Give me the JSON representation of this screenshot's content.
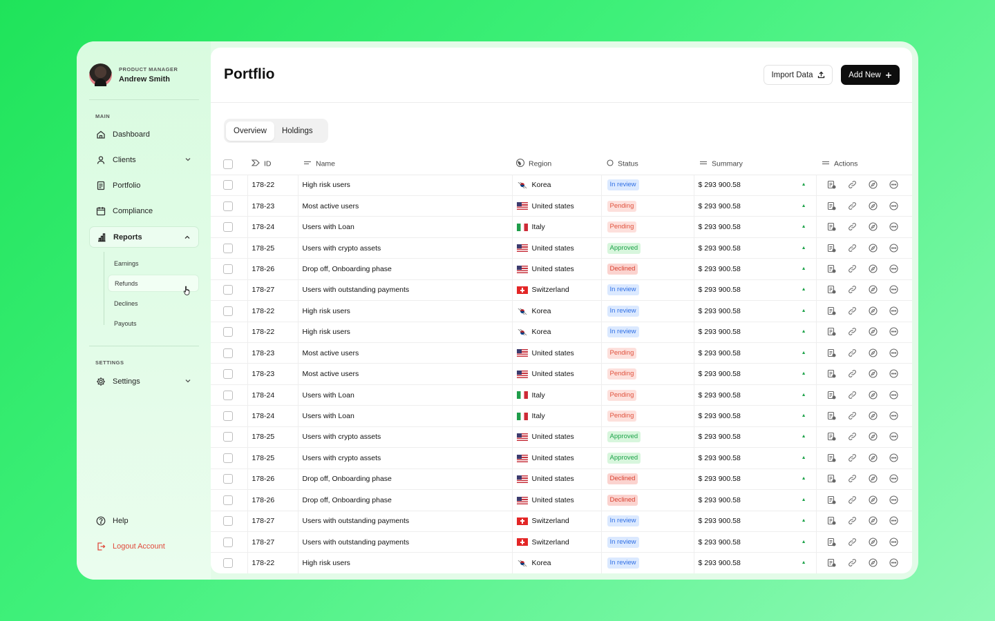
{
  "profile": {
    "role": "PRODUCT MANAGER",
    "name": "Andrew Smith"
  },
  "sidebar": {
    "main_label": "MAIN",
    "items": [
      {
        "label": "Dashboard",
        "icon": "home-icon"
      },
      {
        "label": "Clients",
        "icon": "user-icon"
      },
      {
        "label": "Portfolio",
        "icon": "document-icon"
      },
      {
        "label": "Compliance",
        "icon": "calendar-icon"
      },
      {
        "label": "Reports",
        "icon": "bar-chart-icon"
      }
    ],
    "reports_sub": [
      "Earnings",
      "Refunds",
      "Declines",
      "Payouts"
    ],
    "settings_label": "SETTINGS",
    "settings": "Settings",
    "help": "Help",
    "logout": "Logout Account"
  },
  "header": {
    "title": "Portflio",
    "import_label": "Import Data",
    "add_label": "Add New"
  },
  "tabs": [
    "Overview",
    "Holdings"
  ],
  "table": {
    "columns": [
      "ID",
      "Name",
      "Region",
      "Status",
      "Summary",
      "Actions"
    ],
    "rows": [
      {
        "id": "178-22",
        "name": "High risk users",
        "region": "Korea",
        "flag": "kr",
        "status": "In review",
        "summary": "$ 293 900.58"
      },
      {
        "id": "178-23",
        "name": "Most active users",
        "region": "United states",
        "flag": "us",
        "status": "Pending",
        "summary": "$ 293 900.58"
      },
      {
        "id": "178-24",
        "name": "Users with Loan",
        "region": "Italy",
        "flag": "it",
        "status": "Pending",
        "summary": "$ 293 900.58"
      },
      {
        "id": "178-25",
        "name": "Users with crypto assets",
        "region": "United states",
        "flag": "us",
        "status": "Approved",
        "summary": "$ 293 900.58"
      },
      {
        "id": "178-26",
        "name": "Drop off, Onboarding phase",
        "region": "United states",
        "flag": "us",
        "status": "Declined",
        "summary": "$ 293 900.58"
      },
      {
        "id": "178-27",
        "name": "Users with outstanding payments",
        "region": "Switzerland",
        "flag": "ch",
        "status": "In review",
        "summary": "$ 293 900.58"
      },
      {
        "id": "178-22",
        "name": "High risk users",
        "region": "Korea",
        "flag": "kr",
        "status": "In review",
        "summary": "$ 293 900.58"
      },
      {
        "id": "178-22",
        "name": "High risk users",
        "region": "Korea",
        "flag": "kr",
        "status": "In review",
        "summary": "$ 293 900.58"
      },
      {
        "id": "178-23",
        "name": "Most active users",
        "region": "United states",
        "flag": "us",
        "status": "Pending",
        "summary": "$ 293 900.58"
      },
      {
        "id": "178-23",
        "name": "Most active users",
        "region": "United states",
        "flag": "us",
        "status": "Pending",
        "summary": "$ 293 900.58"
      },
      {
        "id": "178-24",
        "name": "Users with Loan",
        "region": "Italy",
        "flag": "it",
        "status": "Pending",
        "summary": "$ 293 900.58"
      },
      {
        "id": "178-24",
        "name": "Users with Loan",
        "region": "Italy",
        "flag": "it",
        "status": "Pending",
        "summary": "$ 293 900.58"
      },
      {
        "id": "178-25",
        "name": "Users with crypto assets",
        "region": "United states",
        "flag": "us",
        "status": "Approved",
        "summary": "$ 293 900.58"
      },
      {
        "id": "178-25",
        "name": "Users with crypto assets",
        "region": "United states",
        "flag": "us",
        "status": "Approved",
        "summary": "$ 293 900.58"
      },
      {
        "id": "178-26",
        "name": "Drop off, Onboarding phase",
        "region": "United states",
        "flag": "us",
        "status": "Declined",
        "summary": "$ 293 900.58"
      },
      {
        "id": "178-26",
        "name": "Drop off, Onboarding phase",
        "region": "United states",
        "flag": "us",
        "status": "Declined",
        "summary": "$ 293 900.58"
      },
      {
        "id": "178-27",
        "name": "Users with outstanding payments",
        "region": "Switzerland",
        "flag": "ch",
        "status": "In review",
        "summary": "$ 293 900.58"
      },
      {
        "id": "178-27",
        "name": "Users with outstanding payments",
        "region": "Switzerland",
        "flag": "ch",
        "status": "In review",
        "summary": "$ 293 900.58"
      },
      {
        "id": "178-22",
        "name": "High risk users",
        "region": "Korea",
        "flag": "kr",
        "status": "In review",
        "summary": "$ 293 900.58"
      }
    ]
  },
  "colors": {
    "accent": "#0d0d0d",
    "approved": "#1ea34a",
    "pending": "#e0533f",
    "review": "#2f6fe4",
    "declined": "#d8402f",
    "logout": "#e0493b"
  }
}
